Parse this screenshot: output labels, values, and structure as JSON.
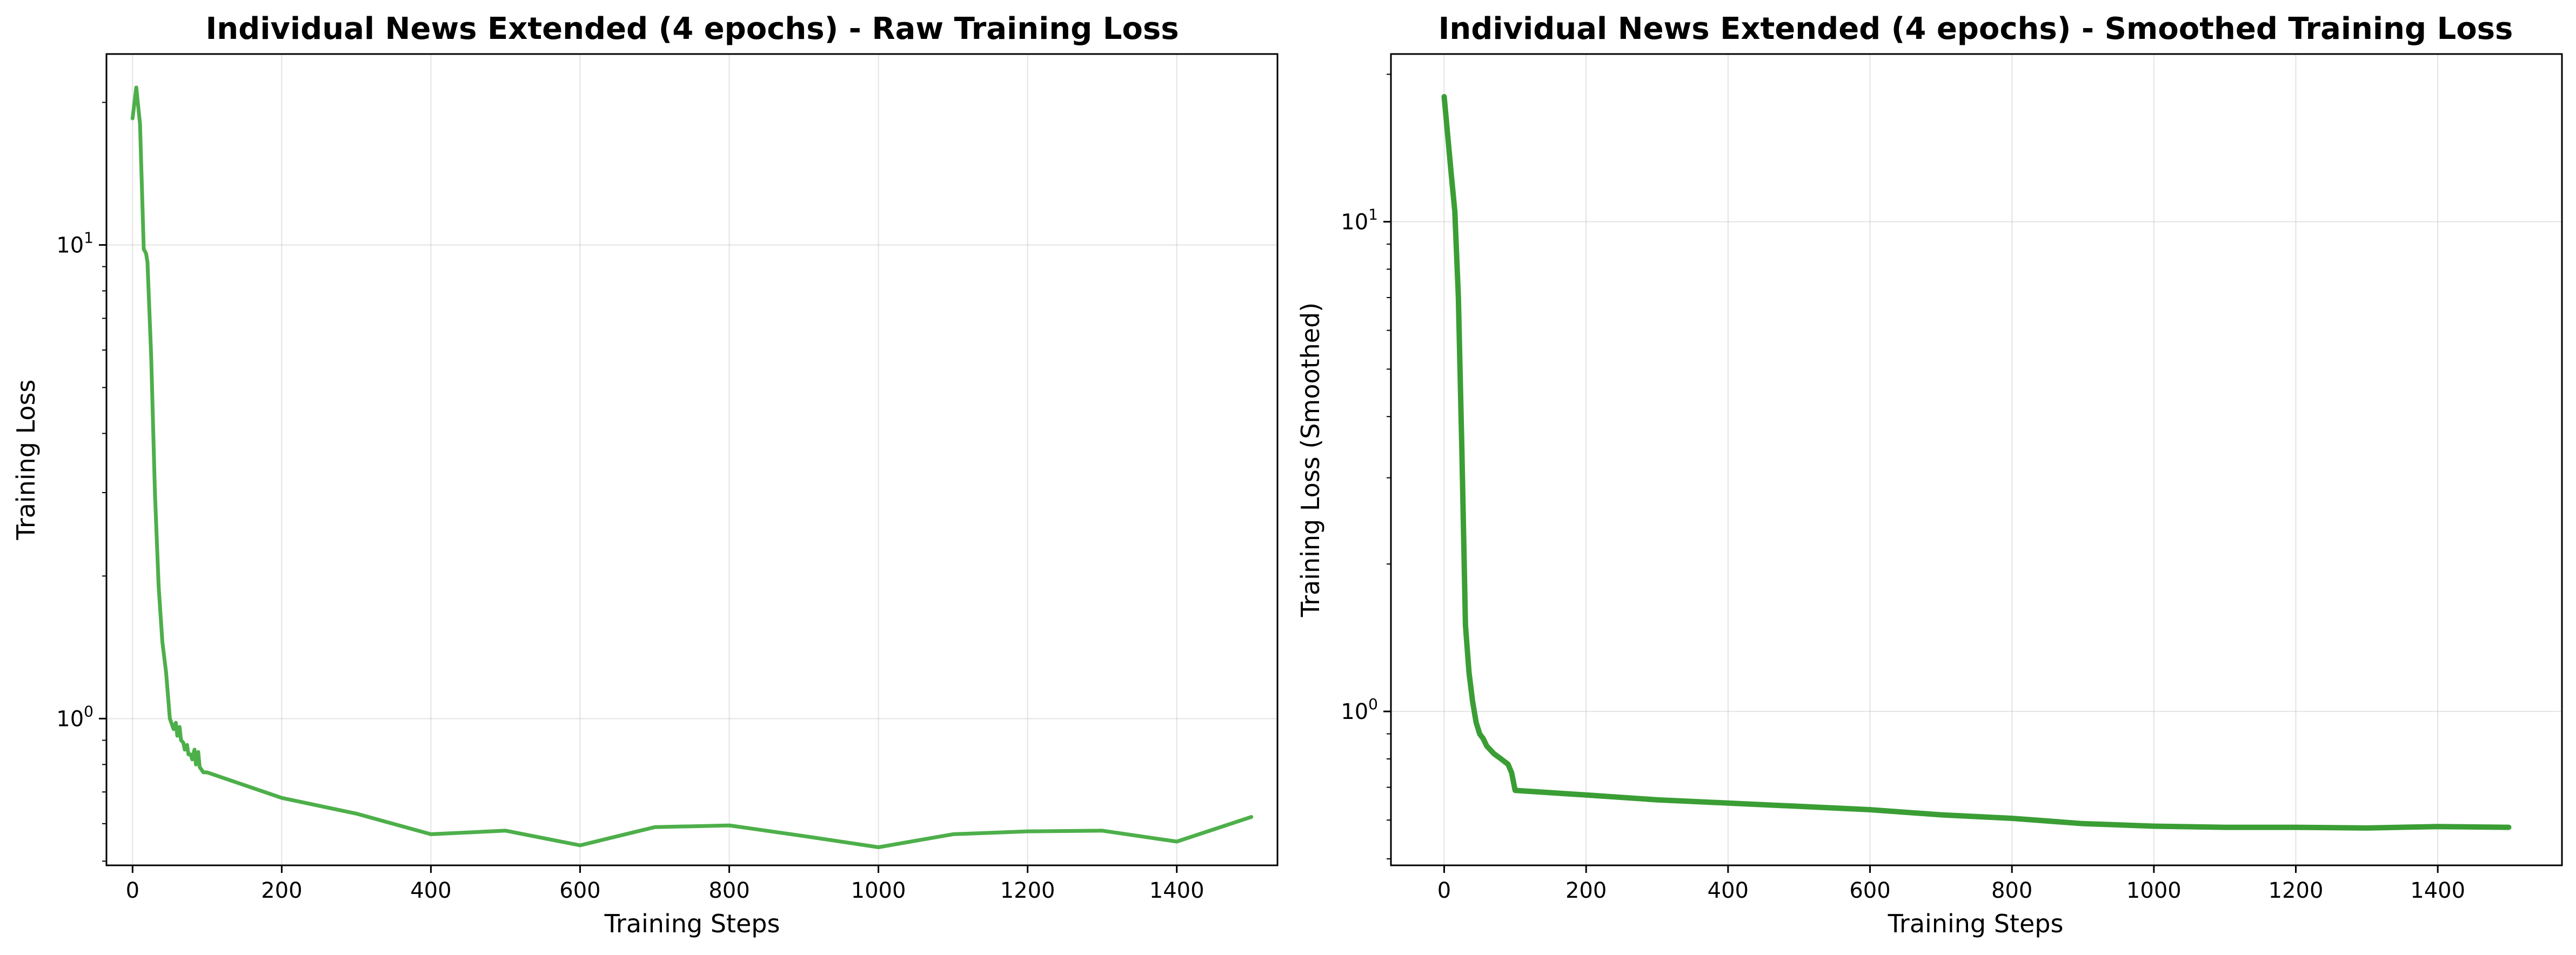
{
  "chart_data": [
    {
      "type": "line",
      "title": "Individual News Extended (4 epochs) - Raw Training Loss",
      "xlabel": "Training Steps",
      "ylabel": "Training Loss",
      "yscale": "log",
      "xlim": [
        -35,
        1535
      ],
      "ylim": [
        0.49,
        25.3
      ],
      "grid": true,
      "color": "#4daf4a",
      "xticks": [
        0,
        200,
        400,
        600,
        800,
        1000,
        1200,
        1400
      ],
      "yticks": [
        {
          "base": "10",
          "exp": "0",
          "value": 1
        },
        {
          "base": "10",
          "exp": "1",
          "value": 10
        }
      ],
      "series": [
        {
          "x": [
            0,
            5,
            10,
            15,
            18,
            20,
            25,
            30,
            35,
            40,
            45,
            50,
            52,
            55,
            58,
            60,
            63,
            65,
            68,
            70,
            73,
            75,
            78,
            80,
            83,
            85,
            88,
            90,
            95,
            100,
            200,
            300,
            400,
            500,
            600,
            700,
            800,
            900,
            1000,
            1100,
            1200,
            1300,
            1400,
            1500
          ],
          "y": [
            18.5,
            21.5,
            18.0,
            9.8,
            9.6,
            9.2,
            5.8,
            3.0,
            1.9,
            1.45,
            1.25,
            1.0,
            0.98,
            0.95,
            0.98,
            0.92,
            0.96,
            0.9,
            0.89,
            0.86,
            0.88,
            0.84,
            0.84,
            0.82,
            0.86,
            0.8,
            0.85,
            0.79,
            0.77,
            0.77,
            0.68,
            0.63,
            0.57,
            0.58,
            0.54,
            0.59,
            0.595,
            0.565,
            0.535,
            0.57,
            0.578,
            0.58,
            0.55,
            0.62
          ]
        }
      ]
    },
    {
      "type": "line",
      "title": "Individual News Extended (4 epochs) - Smoothed Training Loss",
      "xlabel": "Training Steps",
      "ylabel": "Training Loss (Smoothed)",
      "yscale": "log",
      "xlim": [
        -75,
        1575
      ],
      "ylim": [
        0.485,
        22.0
      ],
      "grid": true,
      "color": "#3a9e35",
      "xticks": [
        0,
        200,
        400,
        600,
        800,
        1000,
        1200,
        1400
      ],
      "yticks": [
        {
          "base": "10",
          "exp": "0",
          "value": 1
        },
        {
          "base": "10",
          "exp": "1",
          "value": 10
        }
      ],
      "series": [
        {
          "x": [
            0,
            10,
            15,
            20,
            25,
            30,
            35,
            40,
            45,
            50,
            55,
            60,
            70,
            80,
            90,
            95,
            100,
            200,
            300,
            400,
            500,
            600,
            700,
            800,
            900,
            1000,
            1100,
            1200,
            1300,
            1400,
            1500
          ],
          "y": [
            18.0,
            12.5,
            10.5,
            7.0,
            3.4,
            1.5,
            1.2,
            1.05,
            0.95,
            0.9,
            0.88,
            0.85,
            0.82,
            0.8,
            0.78,
            0.75,
            0.69,
            0.675,
            0.66,
            0.65,
            0.64,
            0.63,
            0.615,
            0.605,
            0.59,
            0.583,
            0.58,
            0.58,
            0.578,
            0.582,
            0.58
          ]
        }
      ]
    }
  ]
}
